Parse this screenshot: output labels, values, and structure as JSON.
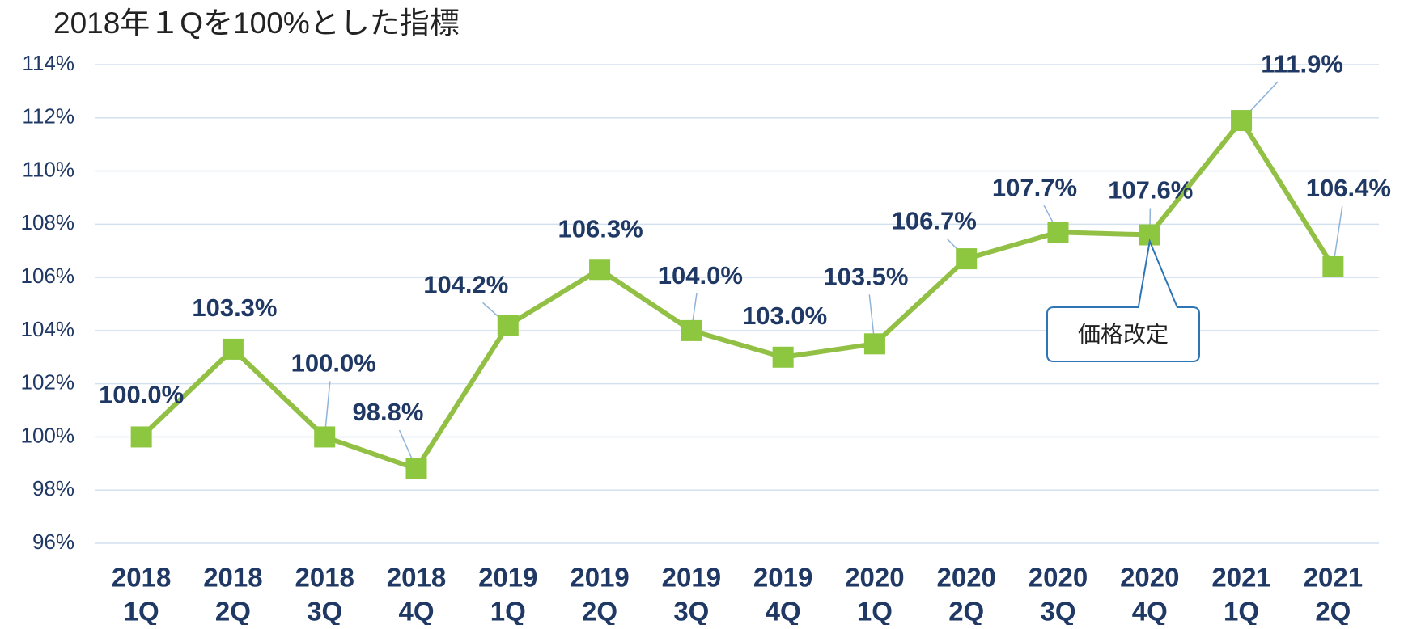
{
  "chart_data": {
    "type": "line",
    "title": "2018年１Qを100%とした指標",
    "categories": [
      [
        "2018",
        "1Q"
      ],
      [
        "2018",
        "2Q"
      ],
      [
        "2018",
        "3Q"
      ],
      [
        "2018",
        "4Q"
      ],
      [
        "2019",
        "1Q"
      ],
      [
        "2019",
        "2Q"
      ],
      [
        "2019",
        "3Q"
      ],
      [
        "2019",
        "4Q"
      ],
      [
        "2020",
        "1Q"
      ],
      [
        "2020",
        "2Q"
      ],
      [
        "2020",
        "3Q"
      ],
      [
        "2020",
        "4Q"
      ],
      [
        "2021",
        "1Q"
      ],
      [
        "2021",
        "2Q"
      ]
    ],
    "series": [
      {
        "name": "指標",
        "color": "#92c045",
        "marker_color": "#8dc63f",
        "values": [
          100.0,
          103.3,
          100.0,
          98.8,
          104.2,
          106.3,
          104.0,
          103.0,
          103.5,
          106.7,
          107.7,
          107.6,
          111.9,
          106.4
        ],
        "value_labels": [
          "100.0%",
          "103.3%",
          "100.0%",
          "98.8%",
          "104.2%",
          "106.3%",
          "104.0%",
          "103.0%",
          "103.5%",
          "106.7%",
          "107.7%",
          "107.6%",
          "111.9%",
          "106.4%"
        ]
      }
    ],
    "ylim": [
      96,
      114
    ],
    "yticks": [
      {
        "value": 96,
        "label": "96%"
      },
      {
        "value": 98,
        "label": "98%"
      },
      {
        "value": 100,
        "label": "100%"
      },
      {
        "value": 102,
        "label": "102%"
      },
      {
        "value": 104,
        "label": "104%"
      },
      {
        "value": 106,
        "label": "106%"
      },
      {
        "value": 108,
        "label": "108%"
      },
      {
        "value": 110,
        "label": "110%"
      },
      {
        "value": 112,
        "label": "112%"
      },
      {
        "value": 114,
        "label": "114%"
      }
    ],
    "grid": true,
    "annotations": [
      {
        "text": "価格改定",
        "category_index": 11
      }
    ]
  }
}
